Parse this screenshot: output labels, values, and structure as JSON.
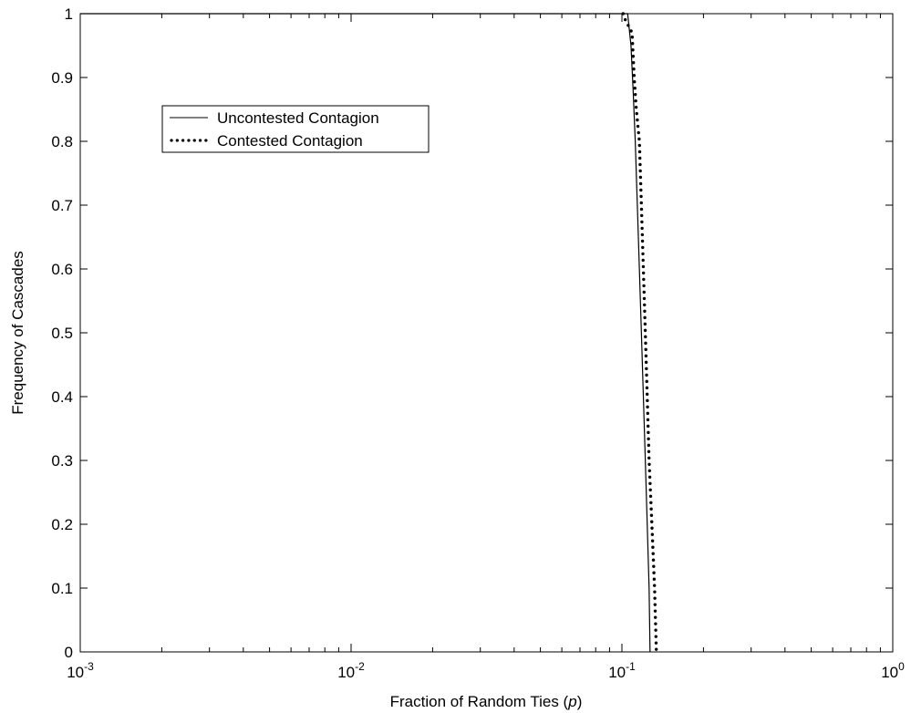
{
  "chart_data": {
    "type": "line",
    "xlabel_text": "Fraction of Random Ties (",
    "xlabel_var": "p",
    "xlabel_close": ")",
    "ylabel": "Frequency of Cascades",
    "xscale": "log",
    "xlim": [
      0.001,
      1
    ],
    "ylim": [
      0,
      1
    ],
    "grid": false,
    "legend_position": "upper-left",
    "x_ticks": [
      {
        "base": "10",
        "exp": "-3",
        "value": 0.001
      },
      {
        "base": "10",
        "exp": "-2",
        "value": 0.01
      },
      {
        "base": "10",
        "exp": "-1",
        "value": 0.1
      },
      {
        "base": "10",
        "exp": "0",
        "value": 1
      }
    ],
    "y_ticks": [
      "0",
      "0.1",
      "0.2",
      "0.3",
      "0.4",
      "0.5",
      "0.6",
      "0.7",
      "0.8",
      "0.9",
      "1"
    ],
    "series": [
      {
        "name": "Uncontested Contagion",
        "style": "solid",
        "color": "#000000",
        "points": [
          [
            0.001,
            1
          ],
          [
            0.1,
            1
          ],
          [
            0.105,
            1
          ],
          [
            0.108,
            0.95
          ],
          [
            0.11,
            0.88
          ],
          [
            0.112,
            0.8
          ],
          [
            0.114,
            0.7
          ],
          [
            0.116,
            0.6
          ],
          [
            0.118,
            0.5
          ],
          [
            0.12,
            0.4
          ],
          [
            0.122,
            0.3
          ],
          [
            0.124,
            0.2
          ],
          [
            0.126,
            0.1
          ],
          [
            0.127,
            0
          ]
        ]
      },
      {
        "name": "Contested Contagion",
        "style": "dotted",
        "color": "#000000",
        "points": [
          [
            0.101,
            1
          ],
          [
            0.103,
            0.99
          ],
          [
            0.106,
            0.98
          ],
          [
            0.109,
            0.97
          ],
          [
            0.111,
            0.9
          ],
          [
            0.113,
            0.85
          ],
          [
            0.116,
            0.8
          ],
          [
            0.118,
            0.7
          ],
          [
            0.12,
            0.6
          ],
          [
            0.122,
            0.5
          ],
          [
            0.124,
            0.4
          ],
          [
            0.126,
            0.3
          ],
          [
            0.129,
            0.2
          ],
          [
            0.132,
            0.1
          ],
          [
            0.134,
            0
          ]
        ]
      }
    ]
  }
}
